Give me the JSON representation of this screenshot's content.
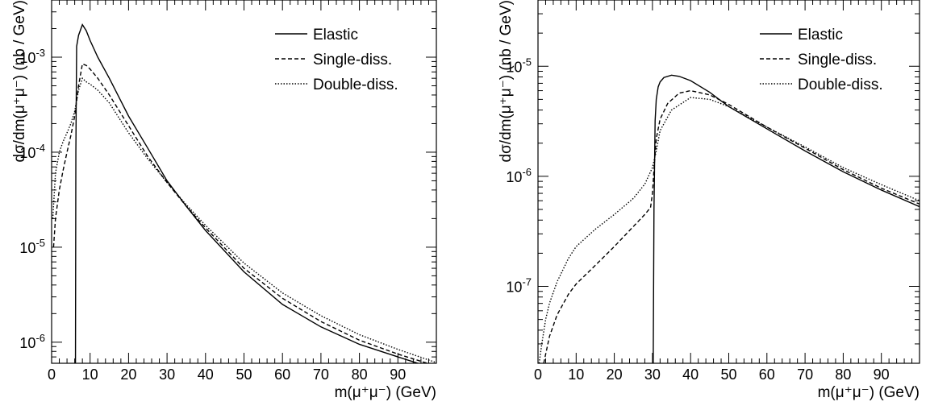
{
  "chart_data": [
    {
      "type": "line",
      "xlabel": "m(μ⁺μ⁻) (GeV)",
      "ylabel": "dσ/dm(μ⁺μ⁻) (nb / GeV)",
      "xlim": [
        0,
        100
      ],
      "ylim": [
        6e-07,
        0.004
      ],
      "yscale": "log",
      "xticks": [
        0,
        10,
        20,
        30,
        40,
        50,
        60,
        70,
        80,
        90
      ],
      "yticks": [
        {
          "value": 1e-06,
          "label": "10",
          "exp": "-6"
        },
        {
          "value": 1e-05,
          "label": "10",
          "exp": "-5"
        },
        {
          "value": 0.0001,
          "label": "10",
          "exp": "-4"
        },
        {
          "value": 0.001,
          "label": "10",
          "exp": "-3"
        }
      ],
      "legend_position": "top-right",
      "series": [
        {
          "name": "Elastic",
          "style": "solid",
          "x": [
            6.2,
            6.3,
            6.5,
            7,
            8,
            9,
            10,
            12,
            15,
            20,
            25,
            30,
            35,
            40,
            50,
            60,
            70,
            80,
            90,
            100
          ],
          "y": [
            6e-07,
            0.0001,
            0.0013,
            0.0017,
            0.0022,
            0.0019,
            0.0015,
            0.001,
            0.0006,
            0.00024,
            0.00011,
            5e-05,
            2.7e-05,
            1.5e-05,
            5.5e-06,
            2.5e-06,
            1.45e-06,
            9.5e-07,
            7e-07,
            5.2e-07
          ]
        },
        {
          "name": "Single-diss.",
          "style": "dashed",
          "x": [
            0.5,
            1,
            2,
            3,
            4,
            5,
            6,
            7,
            8,
            9,
            10,
            12,
            15,
            20,
            25,
            30,
            35,
            40,
            50,
            60,
            70,
            80,
            90,
            100
          ],
          "y": [
            1e-05,
            2e-05,
            4e-05,
            6.5e-05,
            0.0001,
            0.00015,
            0.00024,
            0.0005,
            0.00085,
            0.00082,
            0.00075,
            0.0006,
            0.0004,
            0.00019,
            9e-05,
            4.8e-05,
            2.7e-05,
            1.6e-05,
            6e-06,
            2.9e-06,
            1.65e-06,
            1.05e-06,
            7.5e-07,
            5.6e-07
          ]
        },
        {
          "name": "Double-diss.",
          "style": "dotted",
          "x": [
            0.3,
            1,
            2,
            3,
            4,
            5,
            6,
            7,
            8,
            9,
            10,
            12,
            15,
            20,
            25,
            30,
            35,
            40,
            50,
            60,
            70,
            80,
            90,
            100
          ],
          "y": [
            2e-05,
            6e-05,
            0.0001,
            0.00013,
            0.00016,
            0.0002,
            0.00027,
            0.00045,
            0.0006,
            0.00055,
            0.00052,
            0.00045,
            0.00033,
            0.00016,
            8.5e-05,
            4.8e-05,
            2.8e-05,
            1.7e-05,
            6.8e-06,
            3.3e-06,
            1.9e-06,
            1.2e-06,
            8.4e-07,
            6.1e-07
          ]
        }
      ]
    },
    {
      "type": "line",
      "xlabel": "m(μ⁺μ⁻) (GeV)",
      "ylabel": "dσ/dm(μ⁺μ⁻) (nb / GeV)",
      "xlim": [
        0,
        100
      ],
      "ylim": [
        2e-08,
        4e-05
      ],
      "yscale": "log",
      "xticks": [
        0,
        10,
        20,
        30,
        40,
        50,
        60,
        70,
        80,
        90
      ],
      "yticks": [
        {
          "value": 1e-07,
          "label": "10",
          "exp": "-7"
        },
        {
          "value": 1e-06,
          "label": "10",
          "exp": "-6"
        },
        {
          "value": 1e-05,
          "label": "10",
          "exp": "-5"
        }
      ],
      "legend_position": "top-right",
      "series": [
        {
          "name": "Elastic",
          "style": "solid",
          "x": [
            30.2,
            30.4,
            30.7,
            31,
            31.5,
            32,
            33,
            35,
            37,
            40,
            45,
            50,
            60,
            70,
            80,
            90,
            100
          ],
          "y": [
            2e-08,
            5e-07,
            3.2e-06,
            5e-06,
            6.5e-06,
            7.2e-06,
            7.9e-06,
            8.3e-06,
            8.1e-06,
            7.4e-06,
            5.8e-06,
            4.3e-06,
            2.7e-06,
            1.7e-06,
            1.1e-06,
            7.5e-07,
            5.3e-07
          ]
        },
        {
          "name": "Single-diss.",
          "style": "dashed",
          "x": [
            1.5,
            3,
            5,
            8,
            10,
            15,
            20,
            25,
            28,
            29.5,
            30,
            30.5,
            31,
            32,
            34,
            37,
            40,
            45,
            50,
            60,
            70,
            80,
            90,
            100
          ],
          "y": [
            2e-08,
            3.5e-08,
            5.5e-08,
            8.5e-08,
            1.05e-07,
            1.55e-07,
            2.3e-07,
            3.5e-07,
            4.5e-07,
            5.2e-07,
            7e-07,
            1.3e-06,
            2.2e-06,
            3.3e-06,
            4.6e-06,
            5.7e-06,
            6e-06,
            5.5e-06,
            4.5e-06,
            2.8e-06,
            1.8e-06,
            1.15e-06,
            7.8e-07,
            5.6e-07
          ]
        },
        {
          "name": "Double-diss.",
          "style": "dotted",
          "x": [
            0.3,
            1,
            2,
            3,
            5,
            8,
            10,
            15,
            20,
            25,
            28,
            30,
            31,
            32,
            35,
            40,
            45,
            50,
            60,
            70,
            80,
            90,
            100
          ],
          "y": [
            2e-08,
            3e-08,
            5e-08,
            7e-08,
            1.1e-07,
            1.8e-07,
            2.3e-07,
            3.3e-07,
            4.5e-07,
            6.3e-07,
            8.5e-07,
            1.2e-06,
            1.7e-06,
            2.6e-06,
            4e-06,
            5.2e-06,
            5e-06,
            4.3e-06,
            2.8e-06,
            1.85e-06,
            1.2e-06,
            8.4e-07,
            6e-07
          ]
        }
      ]
    }
  ]
}
